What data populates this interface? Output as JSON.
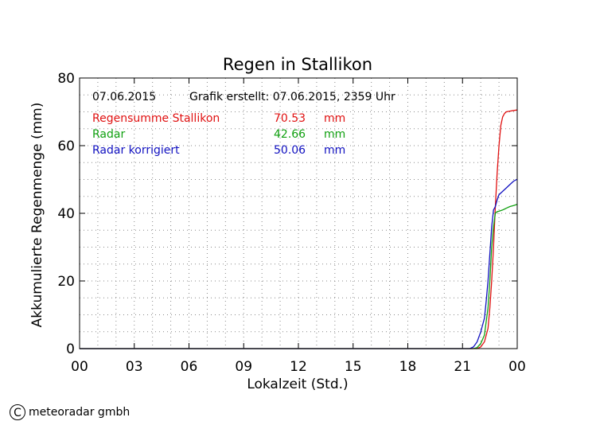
{
  "chart_data": {
    "type": "line",
    "title": "Regen in Stallikon",
    "xlabel": "Lokalzeit (Std.)",
    "ylabel": "Akkumulierte Regenmenge (mm)",
    "x_tick_labels": [
      "00",
      "03",
      "06",
      "09",
      "12",
      "15",
      "18",
      "21",
      "00"
    ],
    "x_ticks_hours": [
      0,
      3,
      6,
      9,
      12,
      15,
      18,
      21,
      24
    ],
    "xlim": [
      0,
      24
    ],
    "ylim": [
      0,
      80
    ],
    "y_ticks": [
      0,
      20,
      40,
      60,
      80
    ],
    "grid": true,
    "info": {
      "date": "07.06.2015",
      "created": "Grafik erstellt: 07.06.2015, 2359 Uhr"
    },
    "series": [
      {
        "name": "Regensumme Stallikon",
        "total": "70.53",
        "unit": "mm",
        "color": "#e01010",
        "x": [
          0,
          21.8,
          22.0,
          22.2,
          22.4,
          22.5,
          22.6,
          22.7,
          22.8,
          22.9,
          23.0,
          23.1,
          23.2,
          23.3,
          23.4,
          23.6,
          23.8,
          24.0
        ],
        "y": [
          0,
          0,
          0.5,
          2,
          6,
          12,
          20,
          30,
          42,
          52,
          60,
          66,
          68.5,
          69.5,
          70.0,
          70.2,
          70.4,
          70.53
        ]
      },
      {
        "name": "Radar",
        "total": "42.66",
        "unit": "mm",
        "color": "#10a010",
        "x": [
          0,
          21.6,
          21.8,
          22.0,
          22.2,
          22.3,
          22.4,
          22.5,
          22.6,
          22.7,
          22.8,
          22.9,
          23.0,
          23.2,
          23.4,
          23.6,
          23.8,
          24.0
        ],
        "y": [
          0,
          0,
          0.3,
          1.5,
          4,
          8,
          12,
          20,
          30,
          36,
          40,
          40.5,
          40.6,
          41,
          41.5,
          42,
          42.3,
          42.66
        ]
      },
      {
        "name": "Radar korrigiert",
        "total": "50.06",
        "unit": "mm",
        "color": "#1010c0",
        "x": [
          0,
          21.4,
          21.6,
          21.8,
          22.0,
          22.2,
          22.3,
          22.4,
          22.5,
          22.6,
          22.7,
          22.8,
          22.9,
          23.0,
          23.2,
          23.4,
          23.6,
          23.8,
          24.0
        ],
        "y": [
          0,
          0,
          0.5,
          2,
          5,
          9,
          14,
          20,
          28,
          36,
          41,
          42,
          44,
          45.5,
          46.5,
          47.5,
          48.5,
          49.5,
          50.06
        ]
      }
    ]
  },
  "credit": {
    "icon": "copyright-icon",
    "symbol": "C",
    "text": "meteoradar gmbh"
  }
}
